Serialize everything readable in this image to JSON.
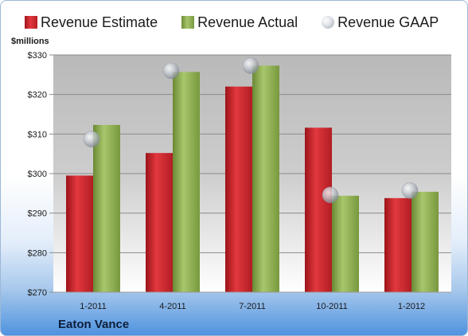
{
  "chart_data": {
    "type": "bar",
    "categories": [
      "1-2011",
      "4-2011",
      "7-2011",
      "10-2011",
      "1-2012"
    ],
    "series": [
      {
        "name": "Revenue Estimate",
        "kind": "bar",
        "color": "#c8242a",
        "values": [
          299.5,
          305.2,
          322.0,
          311.6,
          293.8
        ]
      },
      {
        "name": "Revenue Actual",
        "kind": "bar",
        "color": "#8eaf52",
        "values": [
          312.3,
          325.7,
          327.3,
          294.4,
          295.4
        ]
      },
      {
        "name": "Revenue GAAP",
        "kind": "marker",
        "color": "#b8bcc2",
        "values": [
          308.7,
          326.0,
          327.3,
          294.6,
          295.7
        ]
      }
    ],
    "ylabel": "$millions",
    "ylim": [
      270,
      330
    ],
    "yticks": [
      270,
      280,
      290,
      300,
      310,
      320,
      330
    ],
    "ytick_labels": [
      "$270",
      "$280",
      "$290",
      "$300",
      "$310",
      "$320",
      "$330"
    ],
    "grid": true,
    "legend": "top"
  },
  "footer": {
    "company": "Eaton Vance"
  }
}
